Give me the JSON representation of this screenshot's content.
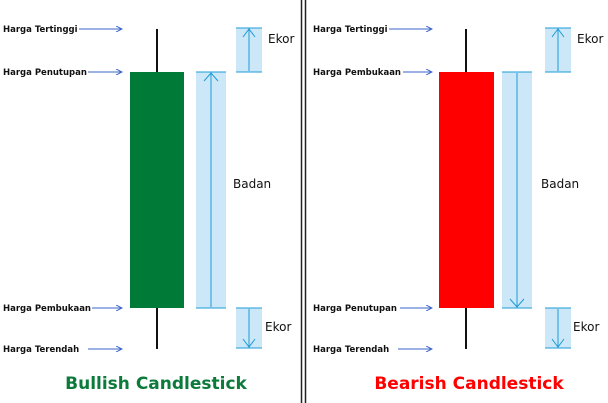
{
  "panels": {
    "bullish": {
      "title": "Bullish Candlestick",
      "label_high": "Harga Tertinggi",
      "label_top": "Harga Penutupan",
      "label_bottom": "Harga Pembukaan",
      "label_low": "Harga Terendah",
      "label_upper_wick": "Ekor",
      "label_body": "Badan",
      "label_lower_wick": "Ekor",
      "body_color": "#007a37",
      "title_color": "#0b7a3a"
    },
    "bearish": {
      "title": "Bearish Candlestick",
      "label_high": "Harga Tertinggi",
      "label_top": "Harga Pembukaan",
      "label_bottom": "Harga Penutupan",
      "label_low": "Harga Terendah",
      "label_upper_wick": "Ekor",
      "label_body": "Badan",
      "label_lower_wick": "Ekor",
      "body_color": "#ff0000",
      "title_color": "#ff0000"
    }
  },
  "colors": {
    "pointer_arrow": "#3a63c8",
    "measure_fill": "#cce8f8",
    "measure_line": "#1c9bd6",
    "wick": "#111111",
    "divider": "#222222"
  }
}
